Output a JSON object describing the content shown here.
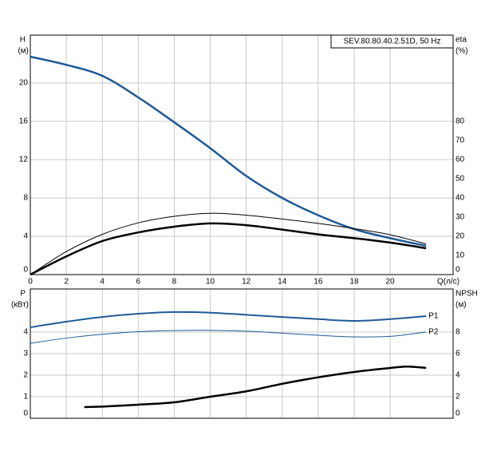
{
  "chart_data": [
    {
      "type": "line",
      "title": "SEV.80.80.40.2.51D, 50 Hz",
      "y_label": "H",
      "y_unit": "(м)",
      "y2_label": "eta",
      "y2_unit": "(%)",
      "x_label": "Q(л/с)",
      "xlim": [
        0,
        23.5
      ],
      "xticks": [
        0,
        2,
        4,
        6,
        8,
        10,
        12,
        14,
        16,
        18,
        20
      ],
      "ylim": [
        0,
        25
      ],
      "yticks": [
        0,
        4,
        8,
        12,
        16,
        20
      ],
      "y2lim": [
        0,
        125
      ],
      "y2ticks": [
        0,
        10,
        20,
        30,
        40,
        50,
        60,
        70,
        80
      ],
      "grid": true,
      "x": [
        0,
        2,
        4,
        6,
        8,
        10,
        12,
        14,
        16,
        18,
        20,
        22
      ],
      "series": [
        {
          "color": "#1f5a96",
          "width": 2.5,
          "values": [
            22.75,
            21.9,
            20.75,
            18.5,
            15.9,
            13.2,
            10.3,
            8.0,
            6.2,
            4.75,
            3.8,
            3.0
          ]
        },
        {
          "color": "#000000",
          "width": 1,
          "axis": "y2",
          "values": [
            0,
            12,
            21,
            27,
            30.4,
            32,
            31,
            29,
            26.7,
            24,
            20.8,
            16
          ]
        },
        {
          "color": "#000000",
          "width": 2.5,
          "axis": "y2",
          "values": [
            0,
            9.5,
            17.5,
            22,
            25,
            26.7,
            25.8,
            23.5,
            21,
            19,
            16.7,
            13.75
          ]
        }
      ]
    },
    {
      "type": "line",
      "y_label": "P",
      "y_unit": "(кВт)",
      "y2_label": "NPSH",
      "y2_unit": "(м)",
      "xlim": [
        0,
        23.5
      ],
      "ylim": [
        0,
        6
      ],
      "yticks": [
        0,
        1,
        2,
        3,
        4
      ],
      "y2lim": [
        0,
        12
      ],
      "y2ticks": [
        0,
        2,
        4,
        6,
        8
      ],
      "grid": true,
      "x": [
        0,
        2,
        4,
        6,
        8,
        10,
        12,
        14,
        16,
        18,
        20,
        22
      ],
      "series": [
        {
          "name": "P1",
          "color": "#1f5a96",
          "width": 2,
          "values": [
            4.22,
            4.48,
            4.7,
            4.85,
            4.93,
            4.9,
            4.8,
            4.7,
            4.6,
            4.52,
            4.6,
            4.74
          ]
        },
        {
          "name": "P2",
          "color": "#1f5a96",
          "width": 1,
          "values": [
            3.48,
            3.72,
            3.9,
            4.02,
            4.07,
            4.08,
            4.04,
            3.95,
            3.85,
            3.78,
            3.8,
            4.0
          ]
        },
        {
          "color": "#000000",
          "width": 2.5,
          "axis": "y2",
          "x": [
            3,
            4,
            6,
            8,
            10,
            12,
            14,
            16,
            18,
            20,
            21,
            22
          ],
          "values": [
            1.04,
            1.08,
            1.26,
            1.48,
            2.0,
            2.5,
            3.2,
            3.8,
            4.3,
            4.67,
            4.8,
            4.67
          ]
        }
      ]
    }
  ]
}
